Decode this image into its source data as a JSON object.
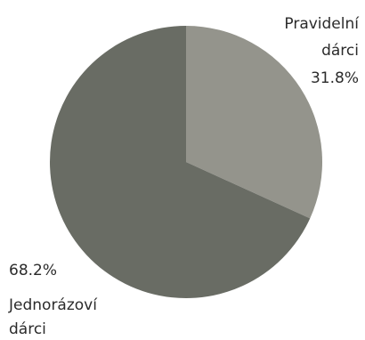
{
  "chart_data": {
    "type": "pie",
    "slices": [
      {
        "label_lines": [
          "Pravidelní",
          "dárci"
        ],
        "percent_label": "31.8%",
        "value": 31.8,
        "color": "#94948c"
      },
      {
        "label_lines": [
          "Jednorázoví",
          "dárci"
        ],
        "percent_label": "68.2%",
        "value": 68.2,
        "color": "#696c64"
      }
    ],
    "start_angle": "12 o'clock",
    "direction": "clockwise"
  }
}
